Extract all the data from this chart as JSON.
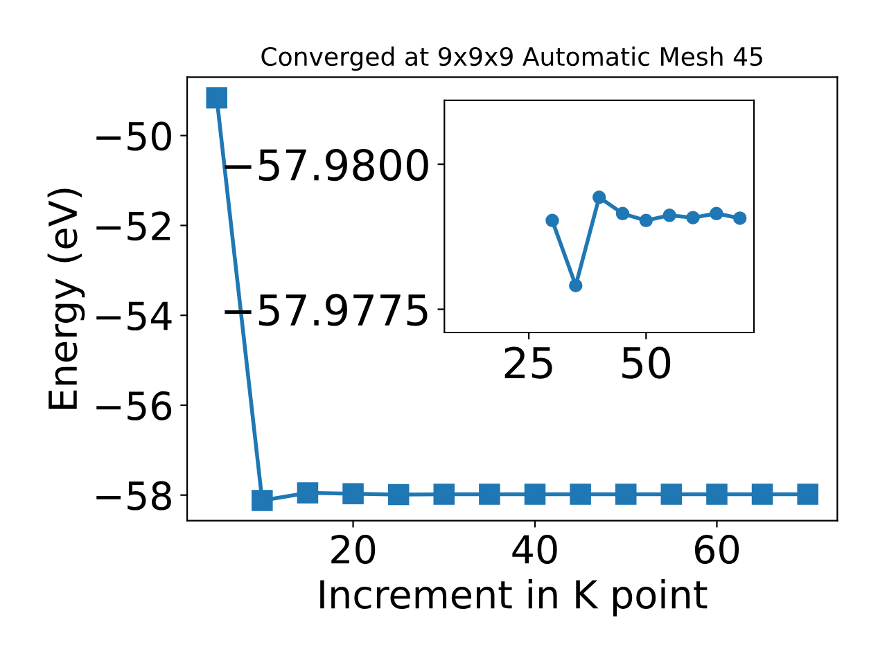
{
  "chart_data": [
    {
      "type": "line",
      "title": "Converged at 9x9x9 Automatic Mesh 45",
      "xlabel": "Increment in K point",
      "ylabel": "Energy (eV)",
      "x": [
        5,
        10,
        15,
        20,
        25,
        30,
        35,
        40,
        45,
        50,
        55,
        60,
        65,
        70
      ],
      "series": [
        {
          "color": "#1f77b4",
          "values": [
            -49.16,
            -58.12,
            -57.95,
            -57.97,
            -57.99,
            -57.98,
            -57.98,
            -57.98,
            -57.98,
            -57.98,
            -57.98,
            -57.98,
            -57.98,
            -57.98
          ]
        }
      ],
      "marker": "square",
      "xlim": [
        1.75,
        73.25
      ],
      "ylim": [
        -58.57,
        -48.7
      ],
      "xticks": [
        20,
        40,
        60
      ],
      "yticks": [
        -58,
        -56,
        -54,
        -52,
        -50
      ],
      "grid": false
    },
    {
      "type": "line",
      "x": [
        30,
        35,
        40,
        45,
        50,
        55,
        60,
        65,
        70
      ],
      "series": [
        {
          "color": "#1f77b4",
          "values": [
            -57.97903,
            -57.97791,
            -57.97943,
            -57.97915,
            -57.97903,
            -57.97912,
            -57.97908,
            -57.97915,
            -57.97907
          ]
        }
      ],
      "marker": "circle",
      "xlim": [
        7,
        73
      ],
      "ylim": [
        -57.9771,
        -57.9811
      ],
      "xticks": [
        25,
        50
      ],
      "yticks": [
        {
          "value": -57.98,
          "label": "−57.9800"
        },
        {
          "value": -57.9775,
          "label": "−57.9775"
        }
      ],
      "grid": false
    }
  ]
}
